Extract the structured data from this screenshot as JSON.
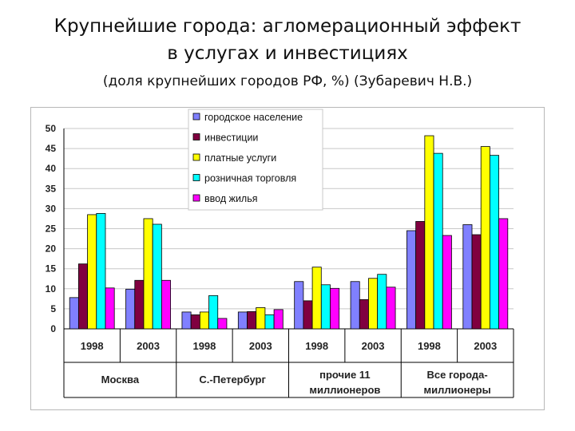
{
  "title": {
    "line1": "Крупнейшие города: агломерационный эффект",
    "line2": "в услугах и инвестициях",
    "subtitle": "(доля крупнейших городов РФ, %) (Зубаревич Н.В.)"
  },
  "chart_data": {
    "type": "bar",
    "ylim": [
      0,
      50
    ],
    "yticks": [
      0,
      5,
      10,
      15,
      20,
      25,
      30,
      35,
      40,
      45,
      50
    ],
    "grid": true,
    "legend_position": "top-center",
    "groups": [
      {
        "name": "Москва",
        "name_lines": [
          "Москва"
        ],
        "years": [
          "1998",
          "2003"
        ]
      },
      {
        "name": "С.-Петербург",
        "name_lines": [
          "С.-Петербург"
        ],
        "years": [
          "1998",
          "2003"
        ]
      },
      {
        "name": "прочие 11 миллионеров",
        "name_lines": [
          "прочие 11",
          "миллионеров"
        ],
        "years": [
          "1998",
          "2003"
        ]
      },
      {
        "name": "Все города-миллионеры",
        "name_lines": [
          "Все города-",
          "миллионеры"
        ],
        "years": [
          "1998",
          "2003"
        ]
      }
    ],
    "categories": [
      "1998",
      "2003",
      "1998",
      "2003",
      "1998",
      "2003",
      "1998",
      "2003"
    ],
    "series": [
      {
        "name": "городское население",
        "color": "#8080ff",
        "values": [
          7.8,
          9.9,
          4.2,
          4.2,
          11.8,
          11.8,
          24.5,
          26.0
        ]
      },
      {
        "name": "инвестиции",
        "color": "#800040",
        "values": [
          16.2,
          12.1,
          3.5,
          4.3,
          7.0,
          7.3,
          26.8,
          23.5
        ]
      },
      {
        "name": "платные услуги",
        "color": "#ffff00",
        "values": [
          28.5,
          27.5,
          4.2,
          5.3,
          15.4,
          12.6,
          48.2,
          45.5
        ]
      },
      {
        "name": "розничная торговля",
        "color": "#00ffff",
        "values": [
          28.8,
          26.1,
          8.3,
          3.5,
          11.0,
          13.6,
          43.8,
          43.3
        ]
      },
      {
        "name": "ввод жилья",
        "color": "#ff00ff",
        "values": [
          10.2,
          12.1,
          2.6,
          4.8,
          10.1,
          10.4,
          23.3,
          27.5
        ]
      }
    ]
  }
}
